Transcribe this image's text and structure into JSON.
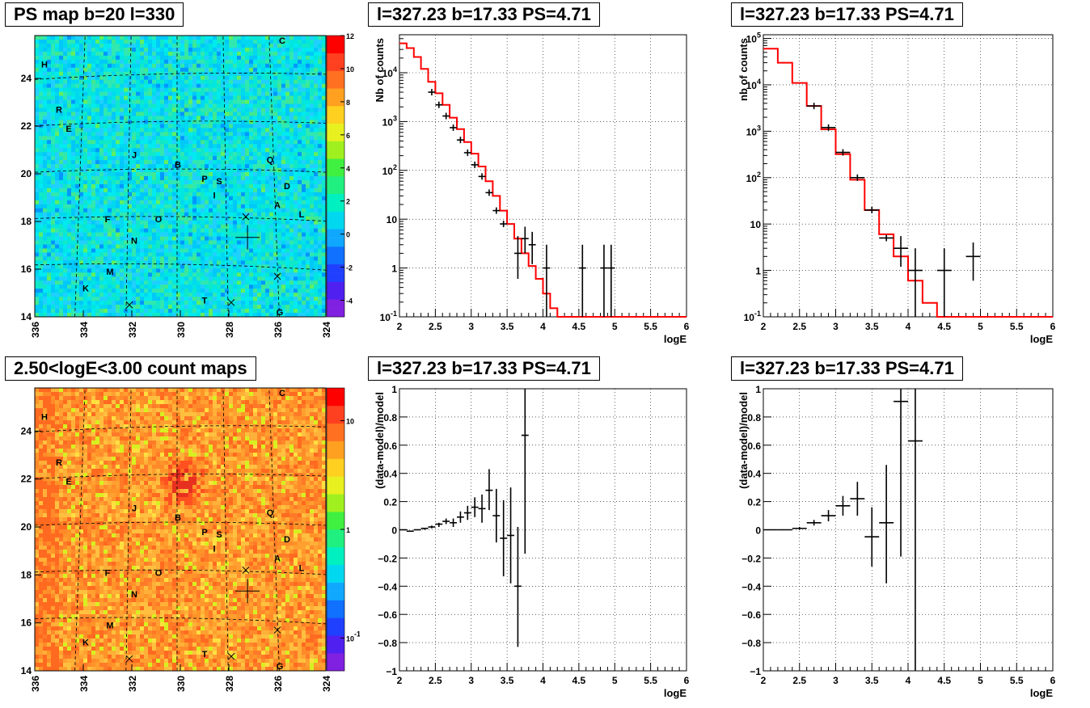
{
  "colors": {
    "hist": "#ff0000",
    "points": "#000000",
    "grid": "#000000"
  },
  "maps": [
    {
      "title": "PS map b=20 l=330",
      "kind": "significance",
      "xticks": [
        "336",
        "334",
        "332",
        "330",
        "328",
        "326",
        "324"
      ],
      "yticks": [
        "14",
        "16",
        "18",
        "20",
        "22",
        "24"
      ],
      "palette_ticks": [
        "-4",
        "-2",
        "0",
        "2",
        "4",
        "6",
        "8",
        "10",
        "12"
      ],
      "base_color": "#00e0e8"
    },
    {
      "title": "2.50<logE<3.00 count maps",
      "kind": "counts",
      "xticks": [
        "336",
        "334",
        "332",
        "330",
        "328",
        "326",
        "324"
      ],
      "yticks": [
        "14",
        "16",
        "18",
        "20",
        "22",
        "24"
      ],
      "palette_ticks": [
        "10",
        "1",
        "10^-1"
      ],
      "base_color": "#ff9a2a"
    }
  ],
  "map_labels": [
    {
      "t": "C",
      "l": 325.8,
      "b": 25.6
    },
    {
      "t": "H",
      "l": 335.6,
      "b": 24.6
    },
    {
      "t": "R",
      "l": 335.0,
      "b": 22.7
    },
    {
      "t": "E",
      "l": 334.6,
      "b": 21.9
    },
    {
      "t": "J",
      "l": 331.9,
      "b": 20.8
    },
    {
      "t": "B",
      "l": 330.1,
      "b": 20.4
    },
    {
      "t": "Q",
      "l": 326.3,
      "b": 20.6
    },
    {
      "t": "P",
      "l": 329.0,
      "b": 19.8
    },
    {
      "t": "S",
      "l": 328.4,
      "b": 19.7
    },
    {
      "t": "I",
      "l": 328.6,
      "b": 19.1
    },
    {
      "t": "D",
      "l": 325.6,
      "b": 19.5
    },
    {
      "t": "A",
      "l": 326.0,
      "b": 18.7
    },
    {
      "t": "L",
      "l": 325.0,
      "b": 18.3
    },
    {
      "t": "F",
      "l": 333.0,
      "b": 18.1
    },
    {
      "t": "O",
      "l": 330.9,
      "b": 18.1
    },
    {
      "t": "N",
      "l": 331.9,
      "b": 17.2
    },
    {
      "t": "M",
      "l": 332.9,
      "b": 15.9
    },
    {
      "t": "K",
      "l": 333.9,
      "b": 15.2
    },
    {
      "t": "T",
      "l": 329.0,
      "b": 14.7
    },
    {
      "t": "G",
      "l": 325.9,
      "b": 14.2
    }
  ],
  "map_crosses": [
    {
      "l": 327.3,
      "b": 18.2
    },
    {
      "l": 326.0,
      "b": 15.7
    },
    {
      "l": 327.9,
      "b": 14.6
    },
    {
      "l": 332.1,
      "b": 14.5
    }
  ],
  "map_source": {
    "l": 327.23,
    "b": 17.33
  },
  "chart_data": [
    {
      "type": "line",
      "title": "l=327.23 b=17.33 PS=4.71",
      "xlabel": "logE",
      "ylabel": "Nb of counts",
      "xlim": [
        2,
        6
      ],
      "ylim": [
        0.1,
        60000
      ],
      "log_y": true,
      "grid": true,
      "xticks": [
        "2",
        "2.5",
        "3",
        "3.5",
        "4",
        "4.5",
        "5",
        "5.5",
        "6"
      ],
      "yticks": [
        {
          "v": 0.1,
          "t": "10^-1"
        },
        {
          "v": 1,
          "t": "1"
        },
        {
          "v": 10,
          "t": "10"
        },
        {
          "v": 100,
          "t": "10^2"
        },
        {
          "v": 1000,
          "t": "10^3"
        },
        {
          "v": 10000,
          "t": "10^4"
        }
      ],
      "model": {
        "edges": [
          2.0,
          2.1,
          2.2,
          2.3,
          2.4,
          2.5,
          2.6,
          2.7,
          2.8,
          2.9,
          3.0,
          3.1,
          3.2,
          3.3,
          3.4,
          3.5,
          3.6,
          3.7,
          3.8,
          3.9,
          4.0,
          4.1,
          4.2,
          4.3,
          6.0
        ],
        "values": [
          40000,
          32000,
          21000,
          12000,
          6500,
          3800,
          2200,
          1200,
          700,
          380,
          220,
          120,
          60,
          30,
          15,
          8,
          4,
          2,
          1.1,
          0.6,
          0.3,
          0.15,
          0.1,
          0.1
        ]
      },
      "points": [
        {
          "x": 2.45,
          "y": 4000
        },
        {
          "x": 2.55,
          "y": 2200
        },
        {
          "x": 2.65,
          "y": 1300
        },
        {
          "x": 2.75,
          "y": 750
        },
        {
          "x": 2.85,
          "y": 420
        },
        {
          "x": 2.95,
          "y": 230
        },
        {
          "x": 3.05,
          "y": 130
        },
        {
          "x": 3.15,
          "y": 75
        },
        {
          "x": 3.25,
          "y": 35
        },
        {
          "x": 3.35,
          "y": 15
        },
        {
          "x": 3.45,
          "y": 8
        },
        {
          "x": 3.65,
          "y": 2,
          "lo": 0.6,
          "hi": 4.5
        },
        {
          "x": 3.75,
          "y": 4,
          "lo": 2,
          "hi": 7
        },
        {
          "x": 3.85,
          "y": 3,
          "lo": 1.2,
          "hi": 5.5
        },
        {
          "x": 4.05,
          "y": 1,
          "lo": 0.1,
          "hi": 3
        },
        {
          "x": 4.55,
          "y": 1,
          "lo": 0.1,
          "hi": 3
        },
        {
          "x": 4.85,
          "y": 1,
          "lo": 0.1,
          "hi": 3
        },
        {
          "x": 4.95,
          "y": 1,
          "lo": 0.1,
          "hi": 3
        }
      ]
    },
    {
      "type": "line",
      "title": "l=327.23 b=17.33 PS=4.71",
      "xlabel": "logE",
      "ylabel": "nb of counts",
      "xlim": [
        2,
        6
      ],
      "ylim": [
        0.1,
        120000
      ],
      "log_y": true,
      "grid": true,
      "xticks": [
        "2",
        "2.5",
        "3",
        "3.5",
        "4",
        "4.5",
        "5",
        "5.5",
        "6"
      ],
      "yticks": [
        {
          "v": 0.1,
          "t": "10^-1"
        },
        {
          "v": 1,
          "t": "1"
        },
        {
          "v": 10,
          "t": "10"
        },
        {
          "v": 100,
          "t": "10^2"
        },
        {
          "v": 1000,
          "t": "10^3"
        },
        {
          "v": 10000,
          "t": "10^4"
        },
        {
          "v": 100000,
          "t": "10^5"
        }
      ],
      "model": {
        "edges": [
          2.0,
          2.2,
          2.4,
          2.6,
          2.8,
          3.0,
          3.2,
          3.4,
          3.6,
          3.8,
          4.0,
          4.2,
          4.4,
          4.6,
          6.0
        ],
        "values": [
          60000,
          30000,
          11000,
          3500,
          1100,
          320,
          90,
          20,
          6,
          2,
          0.6,
          0.2,
          0.1,
          0.1
        ]
      },
      "points": [
        {
          "x": 2.7,
          "y": 3500
        },
        {
          "x": 2.9,
          "y": 1200
        },
        {
          "x": 3.1,
          "y": 350
        },
        {
          "x": 3.3,
          "y": 100
        },
        {
          "x": 3.5,
          "y": 20
        },
        {
          "x": 3.7,
          "y": 5
        },
        {
          "x": 3.9,
          "y": 3,
          "lo": 1.2,
          "hi": 5.5
        },
        {
          "x": 4.1,
          "y": 1,
          "lo": 0.1,
          "hi": 3
        },
        {
          "x": 4.5,
          "y": 1,
          "lo": 0.1,
          "hi": 3
        },
        {
          "x": 4.9,
          "y": 2,
          "lo": 0.6,
          "hi": 4
        }
      ]
    },
    {
      "type": "scatter",
      "title": "l=327.23 b=17.33 PS=4.71",
      "xlabel": "logE",
      "ylabel": "(data-model)/model",
      "xlim": [
        2,
        6
      ],
      "ylim": [
        -1,
        1
      ],
      "log_y": false,
      "grid": true,
      "xticks": [
        "2",
        "2.5",
        "3",
        "3.5",
        "4",
        "4.5",
        "5",
        "5.5",
        "6"
      ],
      "yticks": [
        {
          "v": -1,
          "t": "−1"
        },
        {
          "v": -0.8,
          "t": "−0.8"
        },
        {
          "v": -0.6,
          "t": "−0.6"
        },
        {
          "v": -0.4,
          "t": "−0.4"
        },
        {
          "v": -0.2,
          "t": "−0.2"
        },
        {
          "v": 0,
          "t": "0"
        },
        {
          "v": 0.2,
          "t": "0.2"
        },
        {
          "v": 0.4,
          "t": "0.4"
        },
        {
          "v": 0.6,
          "t": "0.6"
        },
        {
          "v": 0.8,
          "t": "0.8"
        },
        {
          "v": 1,
          "t": "1"
        }
      ],
      "points": [
        {
          "x": 2.05,
          "y": 0.0,
          "lo": 0.0,
          "hi": 0.0
        },
        {
          "x": 2.15,
          "y": -0.01,
          "lo": -0.01,
          "hi": -0.01
        },
        {
          "x": 2.25,
          "y": 0.0,
          "lo": 0.0,
          "hi": 0.0
        },
        {
          "x": 2.35,
          "y": 0.01,
          "lo": 0.0,
          "hi": 0.01
        },
        {
          "x": 2.45,
          "y": 0.02,
          "lo": 0.01,
          "hi": 0.03
        },
        {
          "x": 2.55,
          "y": 0.04,
          "lo": 0.02,
          "hi": 0.05
        },
        {
          "x": 2.65,
          "y": 0.06,
          "lo": 0.04,
          "hi": 0.08
        },
        {
          "x": 2.75,
          "y": 0.05,
          "lo": 0.02,
          "hi": 0.08
        },
        {
          "x": 2.85,
          "y": 0.09,
          "lo": 0.05,
          "hi": 0.13
        },
        {
          "x": 2.95,
          "y": 0.12,
          "lo": 0.07,
          "hi": 0.17
        },
        {
          "x": 3.05,
          "y": 0.16,
          "lo": 0.09,
          "hi": 0.23
        },
        {
          "x": 3.15,
          "y": 0.15,
          "lo": 0.05,
          "hi": 0.25
        },
        {
          "x": 3.25,
          "y": 0.28,
          "lo": 0.14,
          "hi": 0.43
        },
        {
          "x": 3.35,
          "y": 0.1,
          "lo": -0.09,
          "hi": 0.29
        },
        {
          "x": 3.45,
          "y": -0.06,
          "lo": -0.33,
          "hi": 0.21
        },
        {
          "x": 3.55,
          "y": -0.04,
          "lo": -0.38,
          "hi": 0.3
        },
        {
          "x": 3.65,
          "y": -0.4,
          "lo": -0.83,
          "hi": 0.02
        },
        {
          "x": 3.75,
          "y": 0.67,
          "lo": -0.17,
          "hi": 1.0
        }
      ]
    },
    {
      "type": "scatter",
      "title": "l=327.23 b=17.33 PS=4.71",
      "xlabel": "logE",
      "ylabel": "(data-model)/model",
      "xlim": [
        2,
        6
      ],
      "ylim": [
        -1,
        1
      ],
      "log_y": false,
      "grid": true,
      "xticks": [
        "2",
        "2.5",
        "3",
        "3.5",
        "4",
        "4.5",
        "5",
        "5.5",
        "6"
      ],
      "yticks": [
        {
          "v": -1,
          "t": "−1"
        },
        {
          "v": -0.8,
          "t": "−0.8"
        },
        {
          "v": -0.6,
          "t": "−0.6"
        },
        {
          "v": -0.4,
          "t": "−0.4"
        },
        {
          "v": -0.2,
          "t": "−0.2"
        },
        {
          "v": 0,
          "t": "0"
        },
        {
          "v": 0.2,
          "t": "0.2"
        },
        {
          "v": 0.4,
          "t": "0.4"
        },
        {
          "v": 0.6,
          "t": "0.6"
        },
        {
          "v": 0.8,
          "t": "0.8"
        },
        {
          "v": 1,
          "t": "1"
        }
      ],
      "points": [
        {
          "x": 2.1,
          "y": 0.0,
          "lo": 0.0,
          "hi": 0.0
        },
        {
          "x": 2.3,
          "y": 0.0,
          "lo": 0.0,
          "hi": 0.0
        },
        {
          "x": 2.5,
          "y": 0.01,
          "lo": 0.0,
          "hi": 0.02
        },
        {
          "x": 2.7,
          "y": 0.05,
          "lo": 0.03,
          "hi": 0.07
        },
        {
          "x": 2.9,
          "y": 0.1,
          "lo": 0.06,
          "hi": 0.14
        },
        {
          "x": 3.1,
          "y": 0.17,
          "lo": 0.1,
          "hi": 0.24
        },
        {
          "x": 3.3,
          "y": 0.22,
          "lo": 0.1,
          "hi": 0.34
        },
        {
          "x": 3.5,
          "y": -0.05,
          "lo": -0.26,
          "hi": 0.16
        },
        {
          "x": 3.7,
          "y": 0.05,
          "lo": -0.38,
          "hi": 0.46
        },
        {
          "x": 3.9,
          "y": 0.91,
          "lo": -0.19,
          "hi": 1.0
        },
        {
          "x": 4.1,
          "y": 0.63,
          "lo": -1.0,
          "hi": 1.0
        }
      ]
    }
  ]
}
